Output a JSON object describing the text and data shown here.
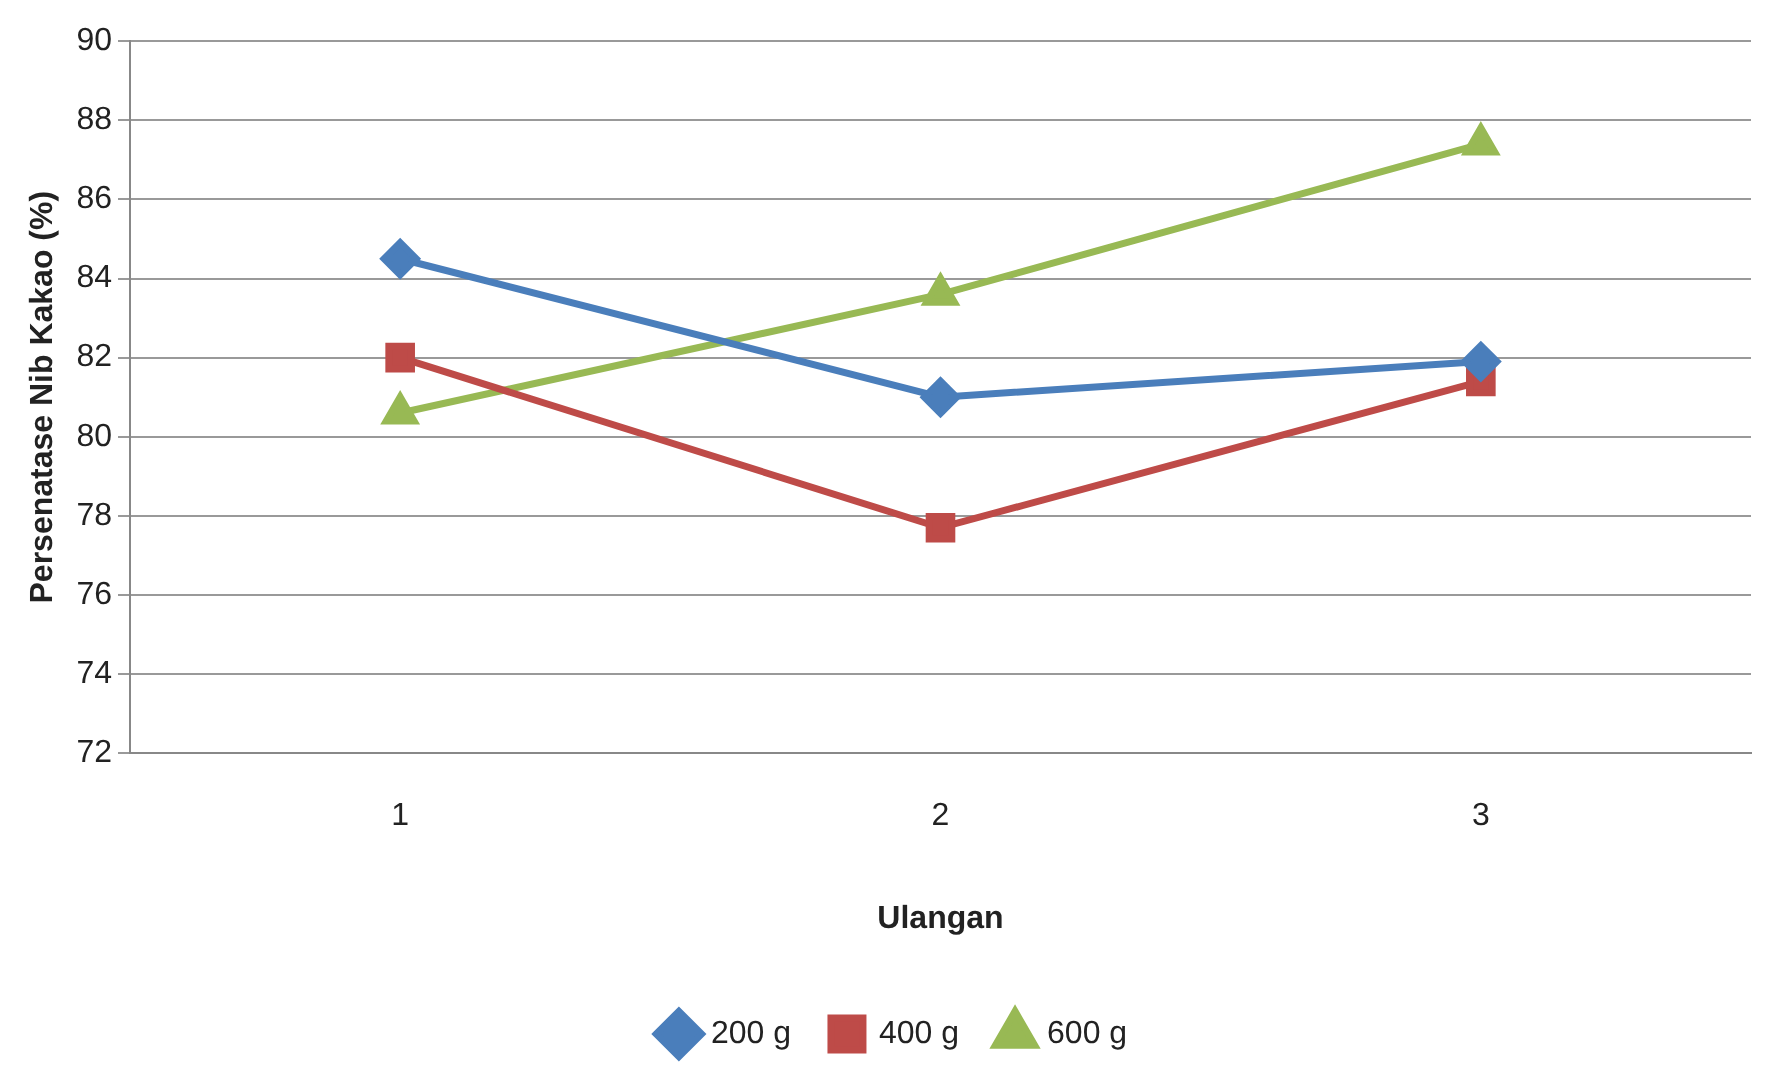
{
  "chart_data": {
    "type": "line",
    "xlabel": "Ulangan",
    "ylabel": "Persenatase Nib Kakao (%)",
    "categories": [
      "1",
      "2",
      "3"
    ],
    "ylim": [
      72,
      90
    ],
    "yticks": [
      72,
      74,
      76,
      78,
      80,
      82,
      84,
      86,
      88,
      90
    ],
    "grid": "y",
    "legend": "bottom",
    "line_style": "solid",
    "series": [
      {
        "name": "200 g",
        "color": "#4a7ebb",
        "marker": "diamond",
        "values": [
          84.5,
          81.0,
          81.9
        ]
      },
      {
        "name": "400 g",
        "color": "#be4b48",
        "marker": "square",
        "values": [
          82.0,
          77.7,
          81.4
        ]
      },
      {
        "name": "600 g",
        "color": "#98b954",
        "marker": "triangle",
        "values": [
          80.6,
          83.6,
          87.4
        ]
      }
    ]
  }
}
